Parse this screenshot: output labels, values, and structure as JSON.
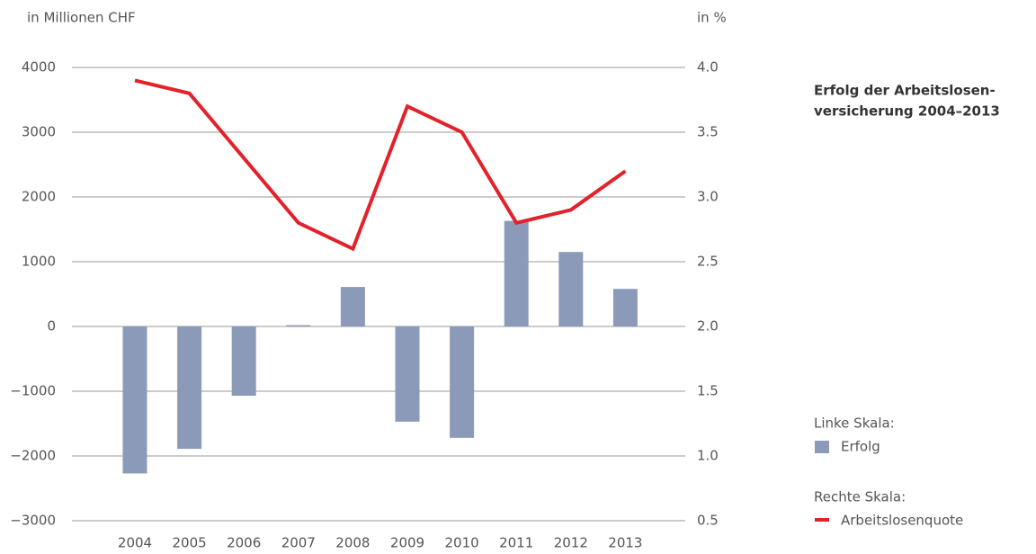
{
  "chart_data": {
    "type": "bar-line",
    "title": [
      "Erfolg der Arbeitslosen-",
      "versicherung 2004–2013"
    ],
    "y_axis_label": "in Millionen CHF",
    "y2_axis_label": "in %",
    "categories": [
      "2004",
      "2005",
      "2006",
      "2007",
      "2008",
      "2009",
      "2010",
      "2011",
      "2012",
      "2013"
    ],
    "series": [
      {
        "name": "Erfolg",
        "type": "bar",
        "scale_label": "Linke Skala:",
        "color": "#8c9aba",
        "values": [
          -2270,
          -1890,
          -1070,
          20,
          610,
          -1470,
          -1720,
          1630,
          1150,
          580
        ]
      },
      {
        "name": "Arbeitslosenquote",
        "type": "line",
        "axis": "y2",
        "scale_label": "Rechte Skala:",
        "color": "#e3212b",
        "values": [
          3.9,
          3.8,
          3.3,
          2.8,
          2.6,
          3.7,
          3.5,
          2.8,
          2.9,
          3.2
        ]
      }
    ],
    "ylim": [
      -3000,
      4000
    ],
    "yticks": [
      {
        "value": -3000,
        "label": "−3000"
      },
      {
        "value": -2000,
        "label": "−2000"
      },
      {
        "value": -1000,
        "label": "−1000"
      },
      0,
      1000,
      2000,
      3000,
      4000
    ],
    "y2lim": [
      0.5,
      4
    ],
    "y2ticks": [
      0.5,
      {
        "value": 1,
        "label": "1.0"
      },
      1.5,
      {
        "value": 2,
        "label": "2.0"
      },
      2.5,
      {
        "value": 3,
        "label": "3.0"
      },
      3.5,
      {
        "value": 4,
        "label": "4.0"
      }
    ],
    "grid": true
  }
}
